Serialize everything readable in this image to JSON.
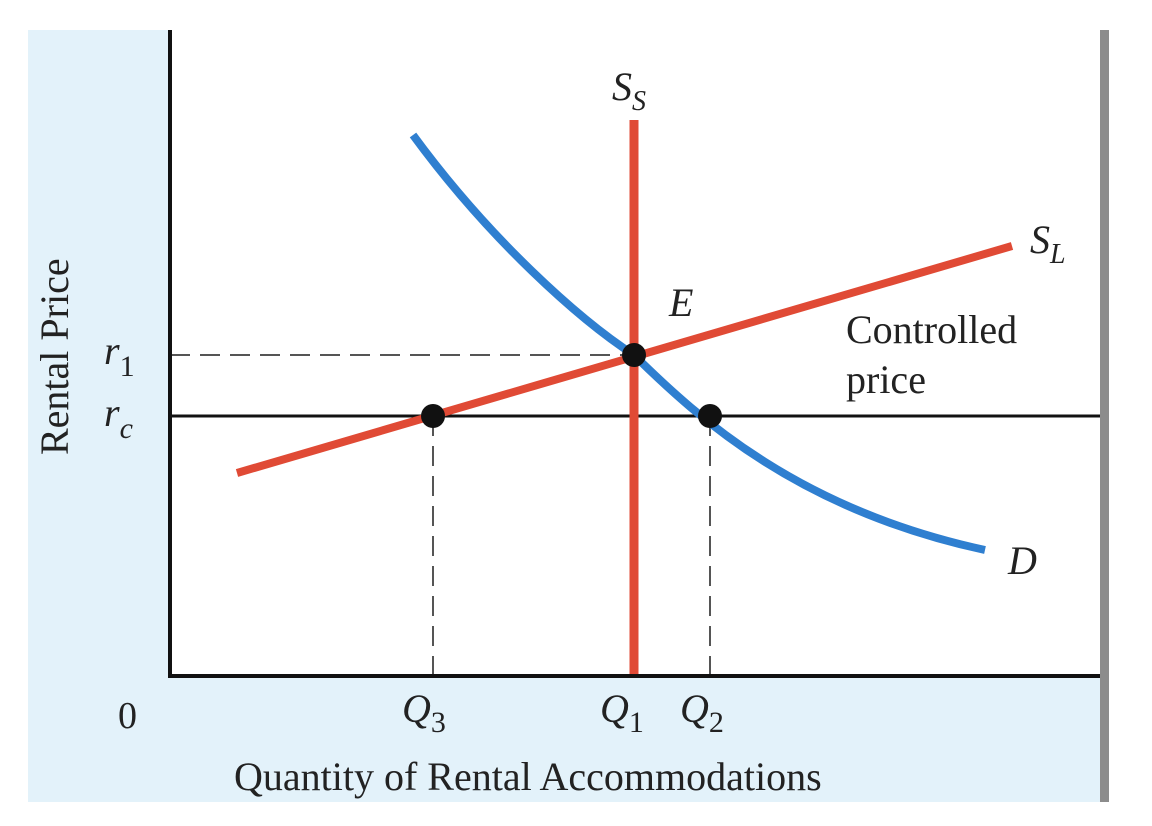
{
  "colors": {
    "background_panel": "#e3f2fa",
    "plot_area": "#ffffff",
    "axis": "#111111",
    "supply": "#e04a35",
    "demand": "#2f7fd0",
    "dashed": "#555555",
    "point": "#111111",
    "right_border": "#8c8c8c"
  },
  "axes": {
    "y_label": "Rental Price",
    "x_label": "Quantity of Rental Accommodations",
    "origin_label": "0"
  },
  "price_labels": {
    "r1": {
      "base": "r",
      "sub": "1"
    },
    "rc": {
      "base": "r",
      "sub": "c"
    }
  },
  "quantity_labels": {
    "q3": {
      "base": "Q",
      "sub": "3"
    },
    "q1": {
      "base": "Q",
      "sub": "1"
    },
    "q2": {
      "base": "Q",
      "sub": "2"
    }
  },
  "curve_labels": {
    "short_run_supply": {
      "base": "S",
      "sub": "S"
    },
    "long_run_supply": {
      "base": "S",
      "sub": "L"
    },
    "demand": "D",
    "equilibrium": "E"
  },
  "annotation": {
    "line1": "Controlled",
    "line2": "price"
  },
  "points": [
    {
      "name": "equilibrium-point",
      "label": "E"
    },
    {
      "name": "q3-point",
      "label": "Q3"
    },
    {
      "name": "q2-point",
      "label": "Q2"
    }
  ]
}
